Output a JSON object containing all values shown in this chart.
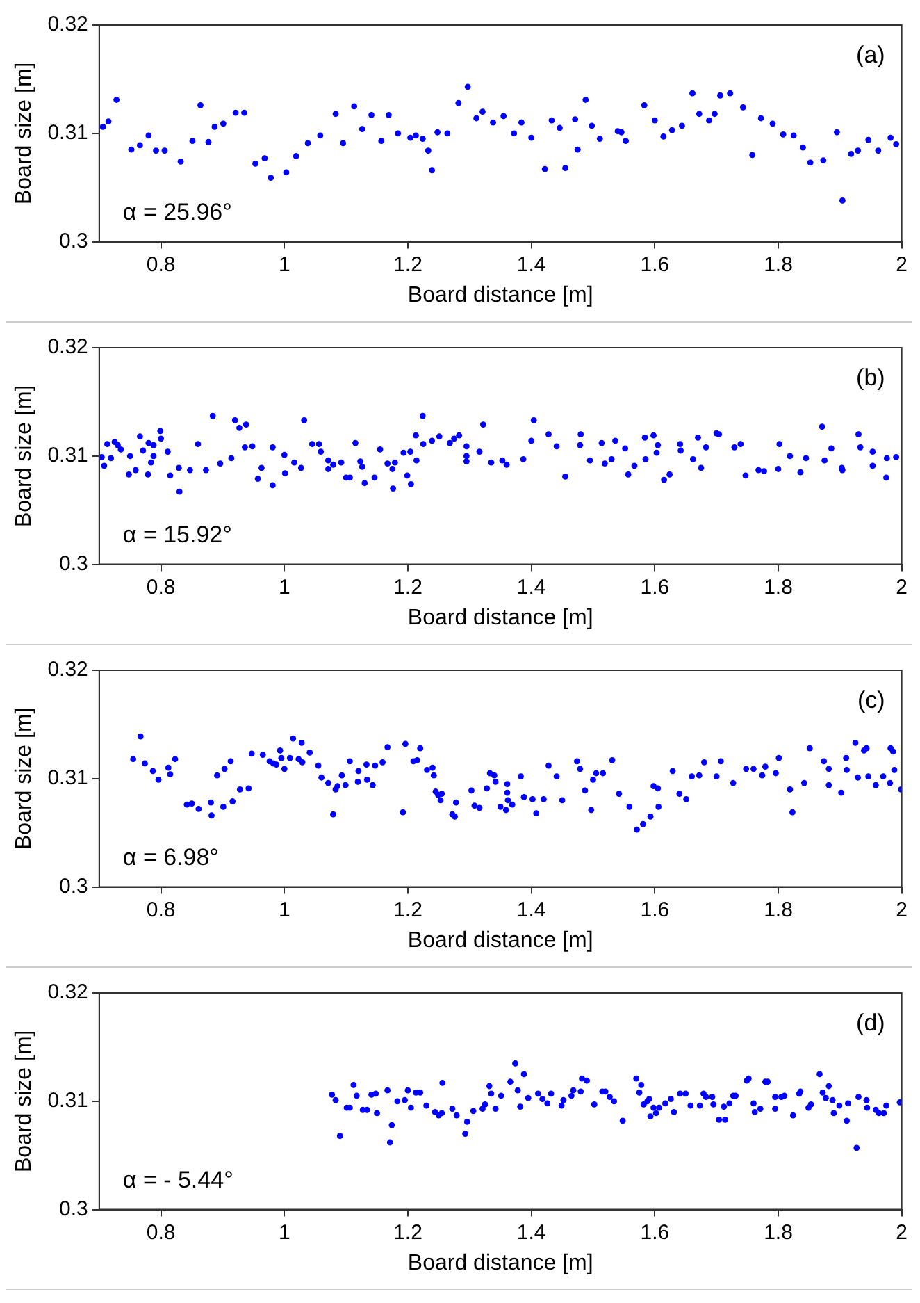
{
  "chart_data": [
    {
      "type": "scatter",
      "xlabel": "Board distance [m]",
      "ylabel": "Board size [m]",
      "annotations": [
        "(a)",
        "α = 25.96°"
      ],
      "color": "#0000ff",
      "marker": "circle",
      "grid": false,
      "xlim": [
        0.7,
        2
      ],
      "xticks": [
        0.8,
        1,
        1.2,
        1.4,
        1.6,
        1.8,
        2
      ],
      "ylim": [
        0.3,
        0.32
      ],
      "yticks": [
        0.3,
        0.31,
        0.32
      ],
      "x": [
        0.706,
        0.715,
        0.728,
        0.752,
        0.766,
        0.78,
        0.792,
        0.806,
        0.832,
        0.851,
        0.864,
        0.877,
        0.887,
        0.901,
        0.921,
        0.935,
        0.953,
        0.968,
        0.978,
        1.003,
        1.019,
        1.038,
        1.058,
        1.083,
        1.095,
        1.113,
        1.126,
        1.141,
        1.157,
        1.169,
        1.184,
        1.204,
        1.213,
        1.224,
        1.233,
        1.239,
        1.248,
        1.264,
        1.282,
        1.297,
        1.311,
        1.321,
        1.338,
        1.355,
        1.372,
        1.384,
        1.4,
        1.422,
        1.433,
        1.446,
        1.455,
        1.471,
        1.475,
        1.488,
        1.498,
        1.511,
        1.54,
        1.546,
        1.553,
        1.583,
        1.6,
        1.614,
        1.628,
        1.644,
        1.661,
        1.672,
        1.688,
        1.697,
        1.706,
        1.722,
        1.743,
        1.758,
        1.772,
        1.791,
        1.808,
        1.825,
        1.84,
        1.852,
        1.873,
        1.895,
        1.904,
        1.918,
        1.929,
        1.946,
        1.962,
        1.982,
        1.991
      ],
      "values": [
        0.3106,
        0.3111,
        0.3131,
        0.3085,
        0.3089,
        0.3098,
        0.3084,
        0.3084,
        0.3074,
        0.3093,
        0.3126,
        0.3092,
        0.3106,
        0.3109,
        0.3119,
        0.3119,
        0.3072,
        0.3077,
        0.3059,
        0.3064,
        0.3079,
        0.3091,
        0.3098,
        0.3118,
        0.3091,
        0.3125,
        0.3104,
        0.3117,
        0.3093,
        0.3117,
        0.31,
        0.3096,
        0.3098,
        0.3095,
        0.3084,
        0.3066,
        0.3101,
        0.31,
        0.3128,
        0.3143,
        0.3114,
        0.312,
        0.311,
        0.3116,
        0.31,
        0.311,
        0.3096,
        0.3067,
        0.3112,
        0.3105,
        0.3068,
        0.3113,
        0.3085,
        0.3131,
        0.3107,
        0.3095,
        0.3102,
        0.3101,
        0.3093,
        0.3126,
        0.3112,
        0.3097,
        0.3103,
        0.3107,
        0.3137,
        0.3118,
        0.3112,
        0.3118,
        0.3135,
        0.3137,
        0.3124,
        0.308,
        0.3114,
        0.3109,
        0.3099,
        0.3098,
        0.3087,
        0.3073,
        0.3075,
        0.3101,
        0.3038,
        0.3081,
        0.3084,
        0.3094,
        0.3084,
        0.3096,
        0.309
      ]
    },
    {
      "type": "scatter",
      "xlabel": "Board distance [m]",
      "ylabel": "Board size [m]",
      "annotations": [
        "(b)",
        "α = 15.92°"
      ],
      "color": "#0000ff",
      "marker": "circle",
      "grid": false,
      "xlim": [
        0.7,
        2
      ],
      "xticks": [
        0.8,
        1,
        1.2,
        1.4,
        1.6,
        1.8,
        2
      ],
      "ylim": [
        0.3,
        0.32
      ],
      "yticks": [
        0.3,
        0.31,
        0.32
      ],
      "x": [
        0.704,
        0.708,
        0.713,
        0.719,
        0.725,
        0.73,
        0.735,
        0.748,
        0.75,
        0.759,
        0.766,
        0.771,
        0.779,
        0.78,
        0.784,
        0.788,
        0.788,
        0.799,
        0.8,
        0.811,
        0.815,
        0.829,
        0.83,
        0.847,
        0.86,
        0.873,
        0.884,
        0.896,
        0.914,
        0.92,
        0.927,
        0.938,
        0.936,
        0.948,
        0.957,
        0.963,
        0.981,
        0.981,
        1.0,
        1.001,
        1.016,
        1.027,
        1.032,
        1.045,
        1.056,
        1.059,
        1.071,
        1.071,
        1.079,
        1.092,
        1.1,
        1.106,
        1.115,
        1.123,
        1.126,
        1.13,
        1.146,
        1.155,
        1.167,
        1.175,
        1.176,
        1.179,
        1.193,
        1.199,
        1.204,
        1.205,
        1.213,
        1.214,
        1.224,
        1.225,
        1.239,
        1.251,
        1.268,
        1.275,
        1.283,
        1.295,
        1.295,
        1.295,
        1.316,
        1.322,
        1.335,
        1.353,
        1.36,
        1.387,
        1.4,
        1.404,
        1.428,
        1.441,
        1.455,
        1.479,
        1.48,
        1.495,
        1.514,
        1.519,
        1.53,
        1.536,
        1.552,
        1.557,
        1.567,
        1.584,
        1.585,
        1.598,
        1.603,
        1.605,
        1.615,
        1.624,
        1.641,
        1.642,
        1.662,
        1.67,
        1.675,
        1.683,
        1.7,
        1.704,
        1.729,
        1.739,
        1.747,
        1.768,
        1.777,
        1.8,
        1.802,
        1.819,
        1.836,
        1.845,
        1.871,
        1.875,
        1.886,
        1.903,
        1.904,
        1.93,
        1.933,
        1.953,
        1.953,
        1.975,
        1.976,
        1.991
      ],
      "values": [
        0.3099,
        0.3091,
        0.3111,
        0.3098,
        0.3113,
        0.311,
        0.3106,
        0.3083,
        0.31,
        0.3087,
        0.3118,
        0.3105,
        0.3083,
        0.3112,
        0.3094,
        0.311,
        0.31,
        0.3123,
        0.3116,
        0.3104,
        0.3082,
        0.3089,
        0.3067,
        0.3087,
        0.3111,
        0.3087,
        0.3137,
        0.3093,
        0.3098,
        0.3133,
        0.3126,
        0.3129,
        0.3108,
        0.3109,
        0.3079,
        0.3089,
        0.3073,
        0.3108,
        0.3101,
        0.3084,
        0.3094,
        0.3089,
        0.3133,
        0.3111,
        0.3111,
        0.3104,
        0.3096,
        0.3088,
        0.3092,
        0.3094,
        0.308,
        0.308,
        0.3112,
        0.3095,
        0.309,
        0.3075,
        0.308,
        0.3106,
        0.3093,
        0.3088,
        0.307,
        0.3094,
        0.3103,
        0.3082,
        0.3104,
        0.3074,
        0.3119,
        0.3096,
        0.3137,
        0.3111,
        0.3114,
        0.3118,
        0.3112,
        0.3116,
        0.3119,
        0.3109,
        0.31,
        0.3095,
        0.3104,
        0.3129,
        0.3094,
        0.3096,
        0.3092,
        0.3097,
        0.3114,
        0.3133,
        0.312,
        0.3109,
        0.3081,
        0.311,
        0.312,
        0.3096,
        0.3112,
        0.3093,
        0.3097,
        0.3114,
        0.3107,
        0.3083,
        0.3091,
        0.3117,
        0.3097,
        0.3119,
        0.3103,
        0.311,
        0.3078,
        0.3083,
        0.3111,
        0.3105,
        0.3097,
        0.3117,
        0.3089,
        0.3108,
        0.3121,
        0.312,
        0.3108,
        0.3111,
        0.3082,
        0.3087,
        0.3086,
        0.3088,
        0.3111,
        0.31,
        0.3085,
        0.3098,
        0.3127,
        0.3096,
        0.3107,
        0.3089,
        0.3087,
        0.312,
        0.3108,
        0.3104,
        0.3091,
        0.308,
        0.3098,
        0.3099
      ]
    },
    {
      "type": "scatter",
      "xlabel": "Board distance [m]",
      "ylabel": "Board size [m]",
      "annotations": [
        "(c)",
        "α = 6.98°"
      ],
      "color": "#0000ff",
      "marker": "circle",
      "grid": false,
      "xlim": [
        0.7,
        2
      ],
      "xticks": [
        0.8,
        1,
        1.2,
        1.4,
        1.6,
        1.8,
        2
      ],
      "ylim": [
        0.3,
        0.32
      ],
      "yticks": [
        0.3,
        0.31,
        0.32
      ],
      "x": [
        0.755,
        0.767,
        0.774,
        0.787,
        0.796,
        0.812,
        0.815,
        0.823,
        0.842,
        0.85,
        0.861,
        0.881,
        0.882,
        0.891,
        0.901,
        0.903,
        0.913,
        0.916,
        0.928,
        0.942,
        0.947,
        0.965,
        0.976,
        0.982,
        0.987,
        0.993,
        0.995,
        1.0,
        1.009,
        1.014,
        1.023,
        1.028,
        1.029,
        1.041,
        1.055,
        1.06,
        1.071,
        1.079,
        1.083,
        1.086,
        1.093,
        1.099,
        1.106,
        1.119,
        1.12,
        1.133,
        1.134,
        1.143,
        1.147,
        1.159,
        1.167,
        1.192,
        1.196,
        1.209,
        1.215,
        1.22,
        1.231,
        1.24,
        1.242,
        1.245,
        1.249,
        1.253,
        1.255,
        1.272,
        1.276,
        1.278,
        1.303,
        1.308,
        1.316,
        1.328,
        1.333,
        1.34,
        1.342,
        1.35,
        1.359,
        1.361,
        1.361,
        1.362,
        1.369,
        1.383,
        1.388,
        1.402,
        1.408,
        1.42,
        1.428,
        1.441,
        1.45,
        1.474,
        1.479,
        1.487,
        1.497,
        1.5,
        1.505,
        1.516,
        1.531,
        1.542,
        1.559,
        1.571,
        1.581,
        1.593,
        1.598,
        1.605,
        1.606,
        1.629,
        1.64,
        1.651,
        1.66,
        1.672,
        1.68,
        1.7,
        1.707,
        1.727,
        1.748,
        1.76,
        1.774,
        1.779,
        1.796,
        1.801,
        1.819,
        1.823,
        1.842,
        1.851,
        1.874,
        1.882,
        1.882,
        1.902,
        1.91,
        1.911,
        1.925,
        1.929,
        1.939,
        1.943,
        1.946,
        1.958,
        1.97,
        1.981,
        1.982,
        1.986,
        1.988,
        1.999
      ],
      "values": [
        0.3118,
        0.3139,
        0.3114,
        0.3107,
        0.3099,
        0.311,
        0.3104,
        0.3118,
        0.3076,
        0.3077,
        0.3072,
        0.3078,
        0.3066,
        0.3103,
        0.3074,
        0.3109,
        0.3116,
        0.3079,
        0.309,
        0.3091,
        0.3123,
        0.3122,
        0.3116,
        0.3114,
        0.3113,
        0.3126,
        0.3119,
        0.3109,
        0.3119,
        0.3137,
        0.3118,
        0.3133,
        0.3115,
        0.3124,
        0.3112,
        0.3101,
        0.3096,
        0.3067,
        0.309,
        0.3093,
        0.3103,
        0.3094,
        0.3116,
        0.3097,
        0.3107,
        0.3113,
        0.3099,
        0.3094,
        0.3112,
        0.3115,
        0.3129,
        0.3069,
        0.3132,
        0.3116,
        0.3117,
        0.3128,
        0.3108,
        0.311,
        0.3103,
        0.3088,
        0.3085,
        0.308,
        0.3086,
        0.3067,
        0.3065,
        0.3078,
        0.3089,
        0.3075,
        0.3073,
        0.3091,
        0.3105,
        0.3103,
        0.3097,
        0.3074,
        0.3071,
        0.3087,
        0.3095,
        0.308,
        0.3076,
        0.3102,
        0.3083,
        0.3081,
        0.3068,
        0.3081,
        0.3112,
        0.3102,
        0.308,
        0.3116,
        0.3109,
        0.3089,
        0.3071,
        0.3099,
        0.3105,
        0.3105,
        0.3117,
        0.3086,
        0.3074,
        0.3053,
        0.3058,
        0.3065,
        0.3093,
        0.3091,
        0.3074,
        0.3107,
        0.3086,
        0.3081,
        0.3102,
        0.3103,
        0.3115,
        0.3102,
        0.3116,
        0.3096,
        0.3109,
        0.3109,
        0.3103,
        0.3111,
        0.3105,
        0.3119,
        0.309,
        0.3069,
        0.3096,
        0.3128,
        0.3116,
        0.3109,
        0.3094,
        0.3087,
        0.3119,
        0.3108,
        0.3133,
        0.3101,
        0.3126,
        0.3128,
        0.3102,
        0.3094,
        0.3102,
        0.3096,
        0.3128,
        0.3125,
        0.3108,
        0.309
      ]
    },
    {
      "type": "scatter",
      "xlabel": "Board distance [m]",
      "ylabel": "Board size [m]",
      "annotations": [
        "(d)",
        "α = - 5.44°"
      ],
      "color": "#0000ff",
      "marker": "circle",
      "grid": false,
      "xlim": [
        0.7,
        2
      ],
      "xticks": [
        0.8,
        1,
        1.2,
        1.4,
        1.6,
        1.8,
        2
      ],
      "ylim": [
        0.3,
        0.32
      ],
      "yticks": [
        0.3,
        0.31,
        0.32
      ],
      "x": [
        1.077,
        1.083,
        1.09,
        1.101,
        1.106,
        1.112,
        1.117,
        1.127,
        1.134,
        1.141,
        1.148,
        1.15,
        1.167,
        1.171,
        1.174,
        1.183,
        1.195,
        1.2,
        1.205,
        1.213,
        1.22,
        1.23,
        1.244,
        1.25,
        1.256,
        1.255,
        1.272,
        1.279,
        1.293,
        1.296,
        1.306,
        1.321,
        1.325,
        1.332,
        1.335,
        1.342,
        1.351,
        1.366,
        1.374,
        1.378,
        1.382,
        1.388,
        1.395,
        1.411,
        1.418,
        1.426,
        1.432,
        1.449,
        1.452,
        1.465,
        1.468,
        1.48,
        1.482,
        1.49,
        1.502,
        1.515,
        1.52,
        1.527,
        1.534,
        1.548,
        1.57,
        1.575,
        1.578,
        1.582,
        1.588,
        1.591,
        1.593,
        1.598,
        1.602,
        1.607,
        1.617,
        1.626,
        1.631,
        1.641,
        1.65,
        1.658,
        1.673,
        1.679,
        1.683,
        1.693,
        1.695,
        1.704,
        1.714,
        1.712,
        1.721,
        1.727,
        1.731,
        1.749,
        1.752,
        1.76,
        1.762,
        1.771,
        1.779,
        1.783,
        1.795,
        1.795,
        1.805,
        1.81,
        1.824,
        1.834,
        1.836,
        1.849,
        1.853,
        1.867,
        1.872,
        1.882,
        1.877,
        1.888,
        1.89,
        1.899,
        1.911,
        1.913,
        1.927,
        1.93,
        1.943,
        1.944,
        1.958,
        1.963,
        1.971,
        1.975,
        1.997
      ],
      "values": [
        0.3106,
        0.3101,
        0.3068,
        0.3094,
        0.3094,
        0.3115,
        0.3105,
        0.3092,
        0.3092,
        0.3106,
        0.3107,
        0.3089,
        0.311,
        0.3062,
        0.3078,
        0.31,
        0.3101,
        0.311,
        0.3094,
        0.3108,
        0.3108,
        0.3096,
        0.309,
        0.3087,
        0.3117,
        0.3089,
        0.3093,
        0.3087,
        0.307,
        0.3081,
        0.3091,
        0.3093,
        0.3097,
        0.3114,
        0.3107,
        0.3093,
        0.3105,
        0.3118,
        0.3135,
        0.311,
        0.3095,
        0.3125,
        0.3103,
        0.3107,
        0.3102,
        0.3098,
        0.3107,
        0.3096,
        0.3101,
        0.3105,
        0.311,
        0.3109,
        0.3121,
        0.3119,
        0.3097,
        0.3109,
        0.3109,
        0.3104,
        0.31,
        0.3082,
        0.3121,
        0.3108,
        0.3115,
        0.3097,
        0.31,
        0.3102,
        0.3086,
        0.3094,
        0.3089,
        0.3094,
        0.3098,
        0.3102,
        0.309,
        0.3107,
        0.3107,
        0.3096,
        0.3096,
        0.3107,
        0.3104,
        0.3104,
        0.3097,
        0.3083,
        0.3083,
        0.3095,
        0.3098,
        0.3105,
        0.3105,
        0.3119,
        0.3121,
        0.3098,
        0.309,
        0.3093,
        0.3118,
        0.3118,
        0.3093,
        0.3104,
        0.3104,
        0.3105,
        0.3087,
        0.3107,
        0.3109,
        0.3094,
        0.3097,
        0.3125,
        0.3108,
        0.3114,
        0.3103,
        0.3101,
        0.3089,
        0.3096,
        0.3082,
        0.3098,
        0.3057,
        0.3104,
        0.3101,
        0.3094,
        0.3092,
        0.3089,
        0.3089,
        0.3096,
        0.3099
      ]
    }
  ]
}
